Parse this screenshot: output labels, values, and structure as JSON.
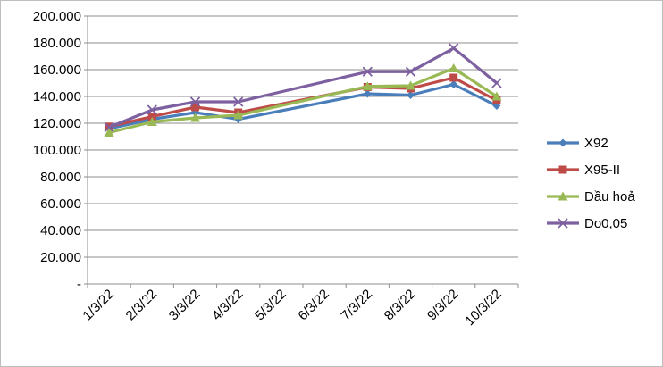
{
  "chart_data": {
    "type": "line",
    "categories": [
      "1/3/22",
      "2/3/22",
      "3/3/22",
      "4/3/22",
      "5/3/22",
      "6/3/22",
      "7/3/22",
      "8/3/22",
      "9/3/22",
      "10/3/22"
    ],
    "y_tick_labels": [
      "-",
      "20.000",
      "40.000",
      "60.000",
      "80.000",
      "100.000",
      "120.000",
      "140.000",
      "160.000",
      "180.000",
      "200.000"
    ],
    "ylim": [
      0,
      200000
    ],
    "grid": true,
    "legend_position": "right",
    "series": [
      {
        "name": "X92",
        "color": "#4a7ebb",
        "marker": "diamond",
        "values": [
          116000,
          123000,
          128000,
          123000,
          null,
          null,
          142000,
          141000,
          149000,
          133000
        ]
      },
      {
        "name": "X95-II",
        "color": "#be4b48",
        "marker": "square",
        "values": [
          117500,
          125000,
          132000,
          128000,
          null,
          null,
          147000,
          146000,
          154000,
          137000
        ]
      },
      {
        "name": "Dầu hoả",
        "color": "#98b954",
        "marker": "triangle",
        "values": [
          113000,
          121000,
          124000,
          126000,
          null,
          null,
          147500,
          148000,
          161000,
          140000
        ]
      },
      {
        "name": "Do0,05",
        "color": "#7d60a0",
        "marker": "x",
        "values": [
          117000,
          130000,
          136000,
          136000,
          null,
          null,
          158500,
          158500,
          176000,
          150000
        ]
      }
    ]
  }
}
